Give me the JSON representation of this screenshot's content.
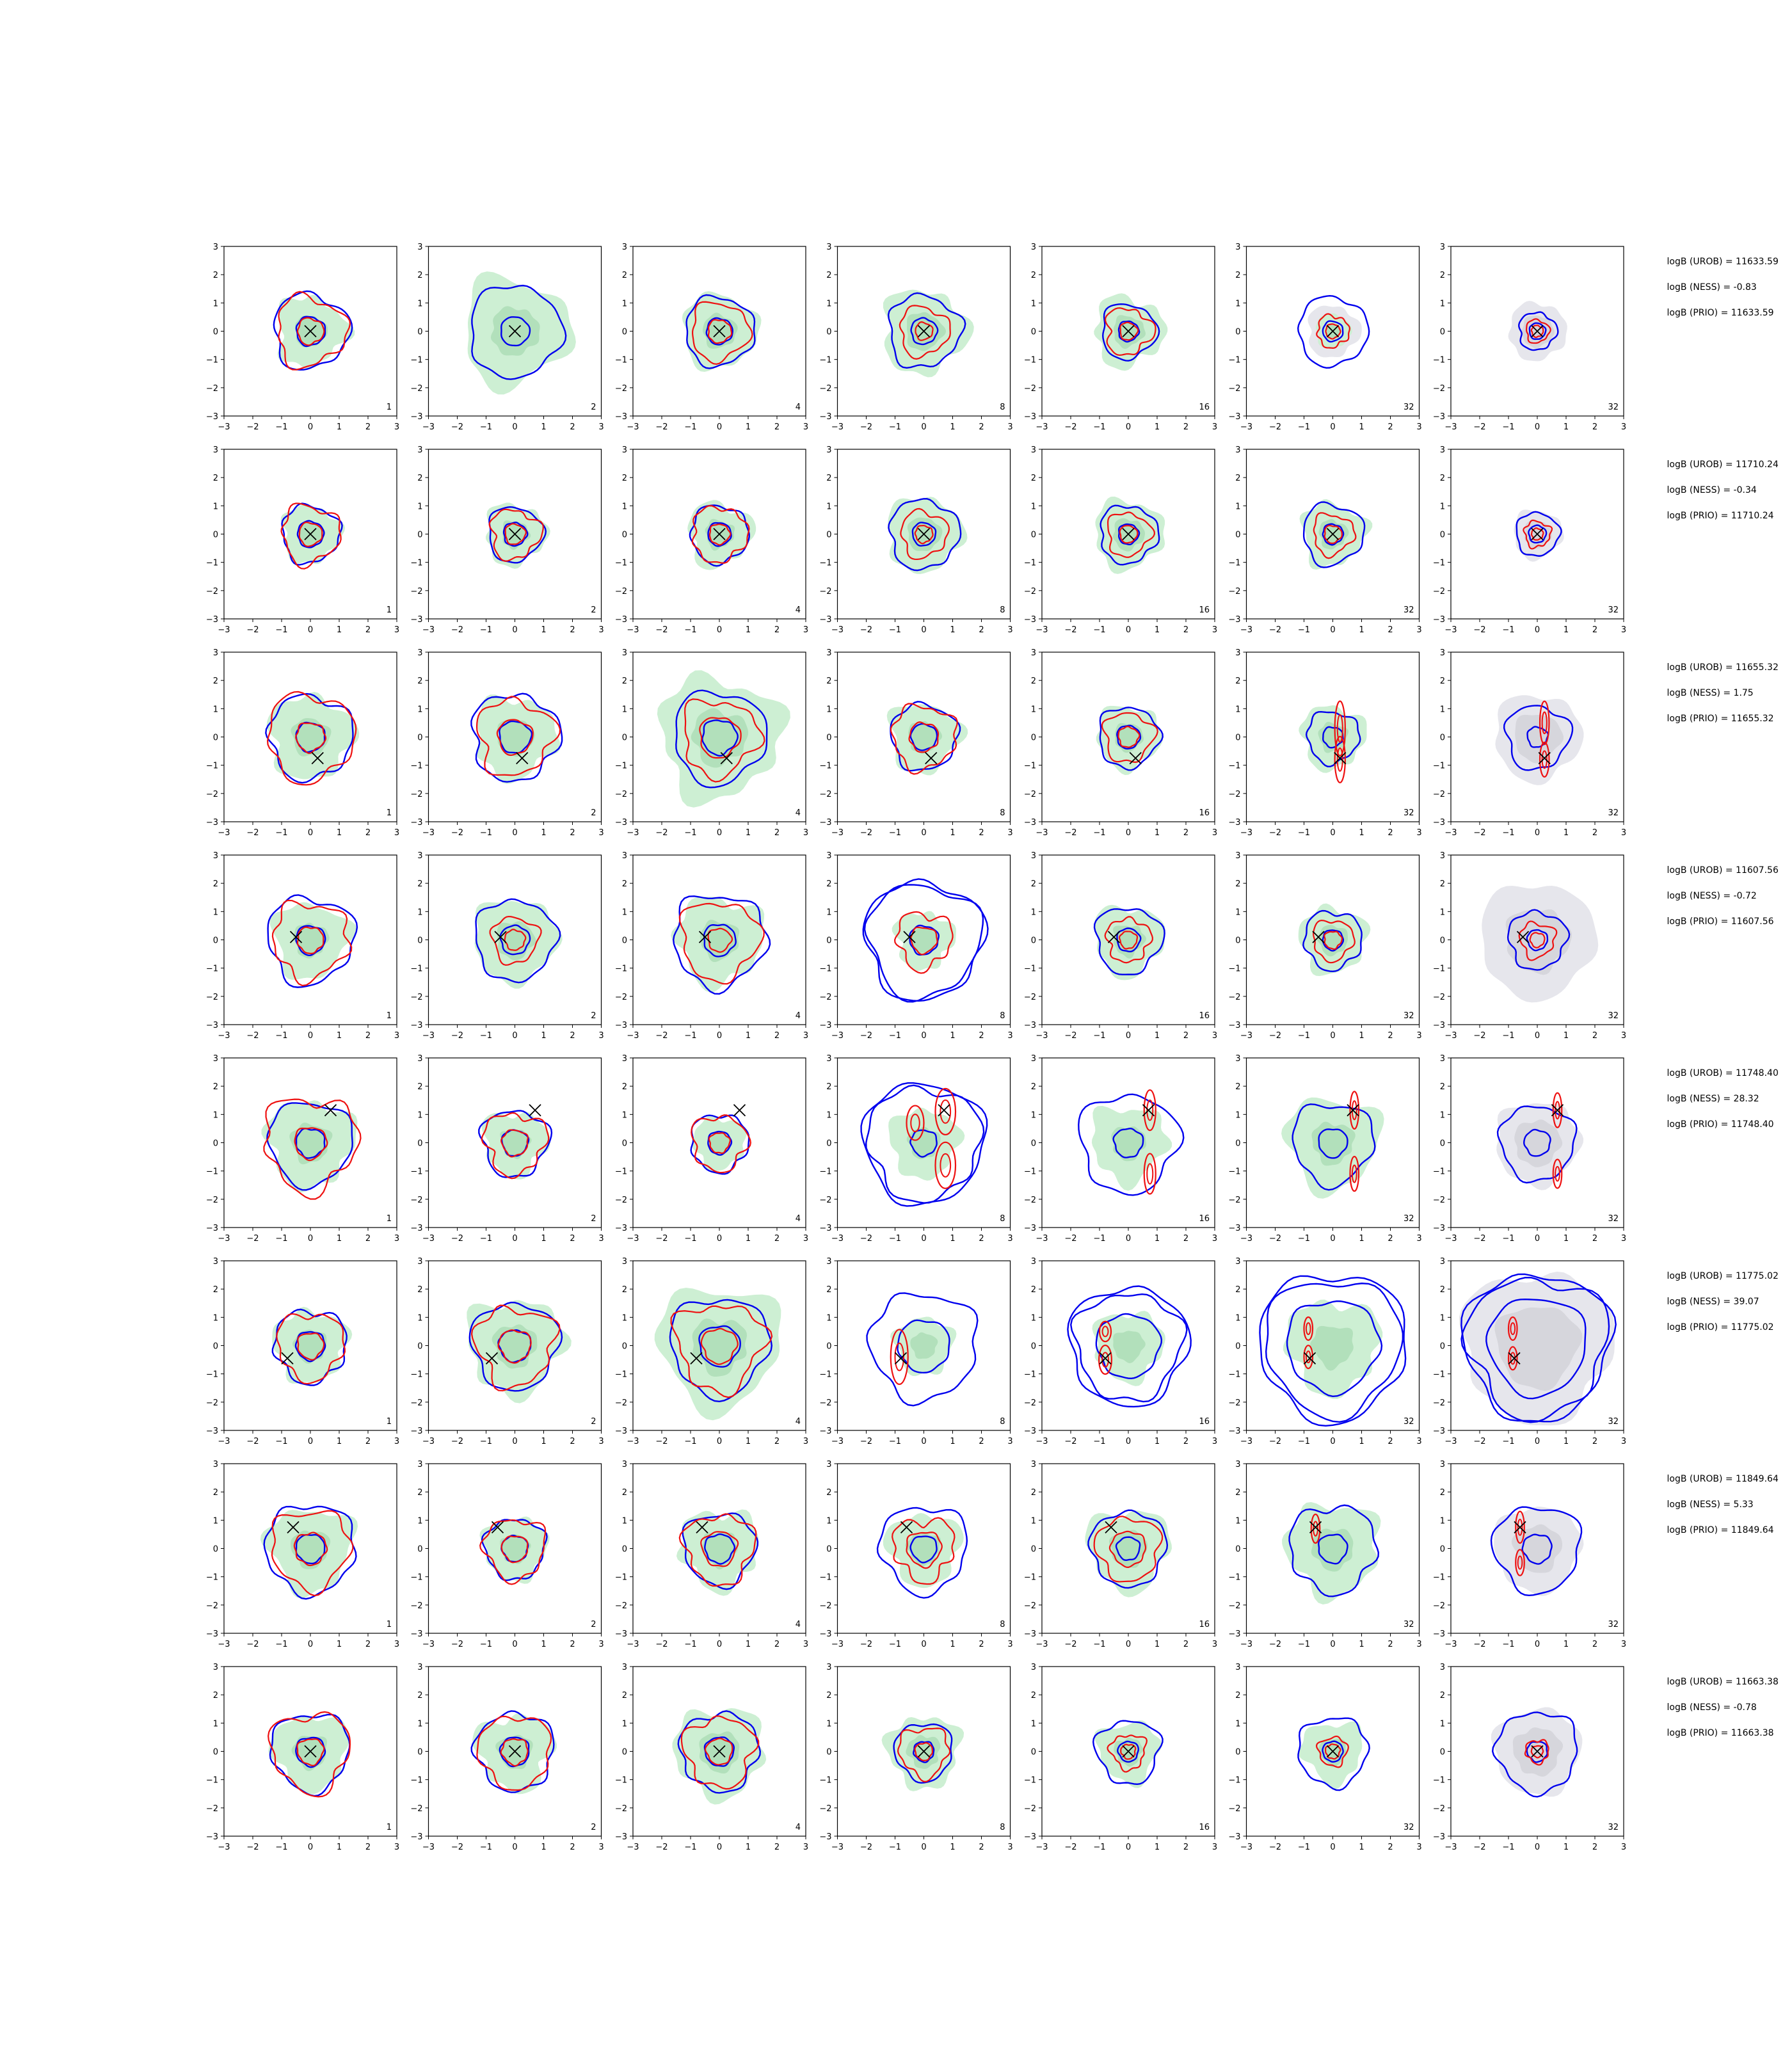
{
  "chart_data": {
    "type": "contour-grid",
    "rows": 8,
    "cols": 7,
    "xlim": [
      -3,
      3
    ],
    "ylim": [
      -3,
      3
    ],
    "ticks": [
      -3,
      -2,
      -1,
      0,
      1,
      2,
      3
    ],
    "tick_labels": [
      "−3",
      "−2",
      "−1",
      "0",
      "1",
      "2",
      "3"
    ],
    "sample_counts": [
      "1",
      "2",
      "4",
      "8",
      "16",
      "32",
      "32"
    ],
    "colors": {
      "fill_green": "#cdefd3",
      "fill_green_dark": "#b2e0bb",
      "fill_grey": "#e6e6ec",
      "fill_grey_dark": "#d6d6dc",
      "contour_blue": "#0000ee",
      "contour_red": "#ee1111",
      "marker": "#000000"
    },
    "rows_data": [
      {
        "logb_urob": "logB (UROB) = 11633.59",
        "logb_ness": "logB (NESS) = -0.83",
        "logb_prio": "logB (PRIO) = 11633.59",
        "marker": [
          0.0,
          0.0
        ],
        "panels": [
          {
            "blue": [
              1.3,
              0.5
            ],
            "red": [
              1.2,
              0.45
            ],
            "green": 1.2,
            "red_modes": []
          },
          {
            "blue": [
              1.6,
              0.5
            ],
            "red": [],
            "green": 1.85,
            "red_modes": []
          },
          {
            "blue": [
              1.2,
              0.45
            ],
            "red": [
              1.0,
              0.4
            ],
            "green": 1.3,
            "red_modes": []
          },
          {
            "blue": [
              1.25,
              0.45
            ],
            "red": [
              0.85,
              0.3
            ],
            "green": 1.45,
            "red_modes": []
          },
          {
            "blue": [
              0.95,
              0.35
            ],
            "red": [
              0.8,
              0.3
            ],
            "green": 1.2,
            "red_modes": []
          },
          {
            "blue": [
              1.2,
              0.35
            ],
            "red": [
              0.55,
              0.25
            ],
            "green": 0.6,
            "grey": 0.9,
            "red_modes": []
          },
          {
            "blue": [
              0.65,
              0.28
            ],
            "red": [
              0.4,
              0.2
            ],
            "green": 0,
            "grey": 1.0,
            "red_modes": []
          }
        ]
      },
      {
        "logb_urob": "logB (UROB) = 11710.24",
        "logb_ness": "logB (NESS) = -0.34",
        "logb_prio": "logB (PRIO) = 11710.24",
        "marker": [
          0.0,
          0.0
        ],
        "panels": [
          {
            "blue": [
              1.0,
              0.45
            ],
            "red": [
              1.0,
              0.4
            ],
            "green": 1.0,
            "red_modes": []
          },
          {
            "blue": [
              0.95,
              0.4
            ],
            "red": [
              0.85,
              0.35
            ],
            "green": 1.05,
            "red_modes": []
          },
          {
            "blue": [
              1.0,
              0.4
            ],
            "red": [
              0.95,
              0.35
            ],
            "green": 1.1,
            "red_modes": []
          },
          {
            "blue": [
              1.2,
              0.4
            ],
            "red": [
              0.8,
              0.3
            ],
            "green": 1.3,
            "red_modes": []
          },
          {
            "blue": [
              1.0,
              0.35
            ],
            "red": [
              0.75,
              0.3
            ],
            "green": 1.2,
            "red_modes": []
          },
          {
            "blue": [
              1.05,
              0.35
            ],
            "red": [
              0.7,
              0.3
            ],
            "green": 1.1,
            "red_modes": []
          },
          {
            "blue": [
              0.75,
              0.3
            ],
            "red": [
              0.45,
              0.2
            ],
            "green": 0,
            "grey": 0.85,
            "red_modes": []
          }
        ]
      },
      {
        "logb_urob": "logB (UROB) = 11655.32",
        "logb_ness": "logB (NESS) = 1.75",
        "logb_prio": "logB (PRIO) = 11655.32",
        "marker": [
          0.25,
          -0.75
        ],
        "panels": [
          {
            "blue": [
              1.45,
              0.5
            ],
            "red": [
              1.5,
              0.5
            ],
            "green": 1.45,
            "red_modes": []
          },
          {
            "blue": [
              1.5,
              0.55
            ],
            "red": [
              1.3,
              0.6
            ],
            "green": 1.4,
            "red_modes": []
          },
          {
            "blue": [
              1.6,
              0.6
            ],
            "red": [
              1.3,
              0.7
            ],
            "green": 2.1,
            "red_modes": []
          },
          {
            "blue": [
              1.15,
              0.45
            ],
            "red": [
              1.1,
              0.5
            ],
            "green": 1.2,
            "red_modes": []
          },
          {
            "blue": [
              1.05,
              0.4
            ],
            "red": [
              0.85,
              0.35
            ],
            "green": 1.1,
            "red_modes": []
          },
          {
            "blue": [
              0.9,
              0.35
            ],
            "red": [],
            "green": 1.1,
            "red_modes": [
              [
                0.25,
                0.3,
                0.18,
                0.95
              ],
              [
                0.25,
                -0.8,
                0.18,
                0.8
              ]
            ]
          },
          {
            "blue": [
              1.1,
              0.35
            ],
            "red": [],
            "green": 0,
            "grey": 1.5,
            "red_modes": [
              [
                0.25,
                0.5,
                0.16,
                0.75
              ],
              [
                0.25,
                -0.8,
                0.16,
                0.6
              ]
            ]
          }
        ]
      },
      {
        "logb_urob": "logB (UROB) = 11607.56",
        "logb_ness": "logB (NESS) = -0.72",
        "logb_prio": "logB (PRIO) = 11607.56",
        "marker": [
          -0.5,
          0.1
        ],
        "panels": [
          {
            "blue": [
              1.5,
              0.5
            ],
            "red": [
              1.3,
              0.45
            ],
            "green": 1.3,
            "red_modes": []
          },
          {
            "blue": [
              1.4,
              0.5
            ],
            "red": [
              0.8,
              0.35
            ],
            "green": 1.45,
            "red_modes": []
          },
          {
            "blue": [
              1.6,
              0.55
            ],
            "red": [
              1.35,
              0.4
            ],
            "green": 1.5,
            "red_modes": []
          },
          {
            "blue": [
              1.95,
              0.5
            ],
            "red": [
              0.95,
              0.45
            ],
            "green": 1.0,
            "blue_outer": 2.05,
            "red_modes": []
          },
          {
            "blue": [
              1.15,
              0.4
            ],
            "red": [
              0.75,
              0.3
            ],
            "green": 1.2,
            "red_modes": []
          },
          {
            "blue": [
              1.0,
              0.35
            ],
            "red": [
              0.7,
              0.3
            ],
            "green": 1.15,
            "red_modes": []
          },
          {
            "blue": [
              1.0,
              0.35
            ],
            "red": [
              0.6,
              0.25
            ],
            "green": 0,
            "grey": 2.0,
            "red_modes": []
          }
        ]
      },
      {
        "logb_urob": "logB (UROB) = 11748.40",
        "logb_ness": "logB (NESS) = 28.32",
        "logb_prio": "logB (PRIO) = 11748.40",
        "marker": [
          0.7,
          1.15
        ],
        "panels": [
          {
            "blue": [
              1.45,
              0.5
            ],
            "red": [
              1.6,
              0.55
            ],
            "green": 1.5,
            "red_modes": []
          },
          {
            "blue": [
              1.15,
              0.45
            ],
            "red": [
              1.05,
              0.45
            ],
            "green": 1.1,
            "red_modes": []
          },
          {
            "blue": [
              1.0,
              0.4
            ],
            "red": [
              0.95,
              0.35
            ],
            "green": 0.9,
            "red_modes": []
          },
          {
            "blue": [
              1.95,
              0.45
            ],
            "red": [],
            "green": 1.2,
            "blue_outer": 2.1,
            "red_modes": [
              [
                0.75,
                1.1,
                0.35,
                0.8
              ],
              [
                0.75,
                -0.8,
                0.35,
                0.8
              ],
              [
                -0.3,
                0.7,
                0.3,
                0.6
              ]
            ]
          },
          {
            "blue": [
              1.7,
              0.5
            ],
            "red": [],
            "green": 1.3,
            "red_modes": [
              [
                0.75,
                1.15,
                0.2,
                0.7
              ],
              [
                0.75,
                -1.1,
                0.2,
                0.7
              ]
            ]
          },
          {
            "blue": [
              1.4,
              0.5
            ],
            "red": [],
            "green": 1.6,
            "red_modes": [
              [
                0.75,
                1.15,
                0.15,
                0.65
              ],
              [
                0.75,
                -1.1,
                0.15,
                0.6
              ]
            ]
          },
          {
            "blue": [
              1.3,
              0.45
            ],
            "red": [],
            "green": 0,
            "grey": 1.45,
            "red_modes": [
              [
                0.7,
                1.15,
                0.15,
                0.6
              ],
              [
                0.7,
                -1.1,
                0.15,
                0.5
              ]
            ]
          }
        ]
      },
      {
        "logb_urob": "logB (UROB) = 11775.02",
        "logb_ness": "logB (NESS) = 39.07",
        "logb_prio": "logB (PRIO) = 11775.02",
        "marker": [
          -0.8,
          -0.45
        ],
        "panels": [
          {
            "blue": [
              1.25,
              0.5
            ],
            "red": [
              1.15,
              0.45
            ],
            "green": 1.25,
            "red_modes": []
          },
          {
            "blue": [
              1.5,
              0.55
            ],
            "red": [
              1.35,
              0.55
            ],
            "green": 1.65,
            "red_modes": []
          },
          {
            "blue": [
              1.7,
              0.7
            ],
            "red": [
              1.5,
              0.6
            ],
            "green": 2.1,
            "red_modes": []
          },
          {
            "blue": [
              1.85,
              0.9
            ],
            "red": [],
            "green": 1.0,
            "red_modes": [
              [
                -0.85,
                -0.4,
                0.3,
                0.95
              ]
            ]
          },
          {
            "blue": [
              1.85,
              1.1
            ],
            "red": [],
            "green": 1.2,
            "blue_outer": 2.05,
            "red_modes": [
              [
                -0.8,
                -0.5,
                0.22,
                0.5
              ],
              [
                -0.8,
                0.5,
                0.2,
                0.35
              ]
            ]
          },
          {
            "blue": [
              2.35,
              1.6
            ],
            "red": [],
            "green": 1.6,
            "blue_outer": 2.55,
            "red_modes": [
              [
                -0.85,
                -0.4,
                0.15,
                0.4
              ],
              [
                -0.85,
                0.6,
                0.15,
                0.4
              ]
            ]
          },
          {
            "blue": [
              2.4,
              1.7
            ],
            "red": [],
            "green": 0,
            "grey": 2.6,
            "blue_outer": 2.55,
            "red_modes": [
              [
                -0.85,
                -0.45,
                0.15,
                0.4
              ],
              [
                -0.85,
                0.6,
                0.15,
                0.4
              ]
            ]
          }
        ]
      },
      {
        "logb_urob": "logB (UROB) = 11849.64",
        "logb_ness": "logB (NESS) = 5.33",
        "logb_prio": "logB (PRIO) = 11849.64",
        "marker": [
          -0.6,
          0.75
        ],
        "panels": [
          {
            "blue": [
              1.55,
              0.5
            ],
            "red": [
              1.35,
              0.55
            ],
            "green": 1.45,
            "red_modes": []
          },
          {
            "blue": [
              1.05,
              0.45
            ],
            "red": [
              1.05,
              0.45
            ],
            "green": 1.1,
            "red_modes": []
          },
          {
            "blue": [
              1.25,
              0.5
            ],
            "red": [
              1.2,
              0.6
            ],
            "green": 1.35,
            "red_modes": []
          },
          {
            "blue": [
              1.5,
              0.45
            ],
            "red": [
              1.05,
              0.6
            ],
            "green": 1.25,
            "red_modes": []
          },
          {
            "blue": [
              1.3,
              0.4
            ],
            "red": [
              1.1,
              0.6
            ],
            "green": 1.4,
            "red_modes": []
          },
          {
            "blue": [
              1.5,
              0.5
            ],
            "red": [],
            "green": 1.6,
            "red_modes": [
              [
                -0.6,
                0.7,
                0.15,
                0.5
              ]
            ]
          },
          {
            "blue": [
              1.5,
              0.5
            ],
            "red": [],
            "green": 0,
            "grey": 1.5,
            "red_modes": [
              [
                -0.6,
                0.75,
                0.15,
                0.55
              ],
              [
                -0.6,
                -0.5,
                0.15,
                0.45
              ]
            ]
          }
        ]
      },
      {
        "logb_urob": "logB (UROB) = 11663.38",
        "logb_ness": "logB (NESS) = -0.78",
        "logb_prio": "logB (PRIO) = 11663.38",
        "marker": [
          0.0,
          0.0
        ],
        "panels": [
          {
            "blue": [
              1.35,
              0.5
            ],
            "red": [
              1.35,
              0.45
            ],
            "green": 1.3,
            "red_modes": []
          },
          {
            "blue": [
              1.35,
              0.5
            ],
            "red": [
              1.25,
              0.45
            ],
            "green": 1.3,
            "red_modes": []
          },
          {
            "blue": [
              1.35,
              0.5
            ],
            "red": [
              1.2,
              0.45
            ],
            "green": 1.55,
            "red_modes": []
          },
          {
            "blue": [
              1.0,
              0.35
            ],
            "red": [
              0.85,
              0.3
            ],
            "green": 1.25,
            "red_modes": []
          },
          {
            "blue": [
              1.1,
              0.35
            ],
            "red": [
              0.6,
              0.25
            ],
            "green": 1.05,
            "red_modes": []
          },
          {
            "blue": [
              1.2,
              0.35
            ],
            "red": [
              0.5,
              0.25
            ],
            "green": 1.05,
            "red_modes": []
          },
          {
            "blue": [
              1.4,
              0.35
            ],
            "red": [
              0.4,
              0.2
            ],
            "green": 0,
            "grey": 1.5,
            "red_modes": []
          }
        ]
      }
    ]
  }
}
